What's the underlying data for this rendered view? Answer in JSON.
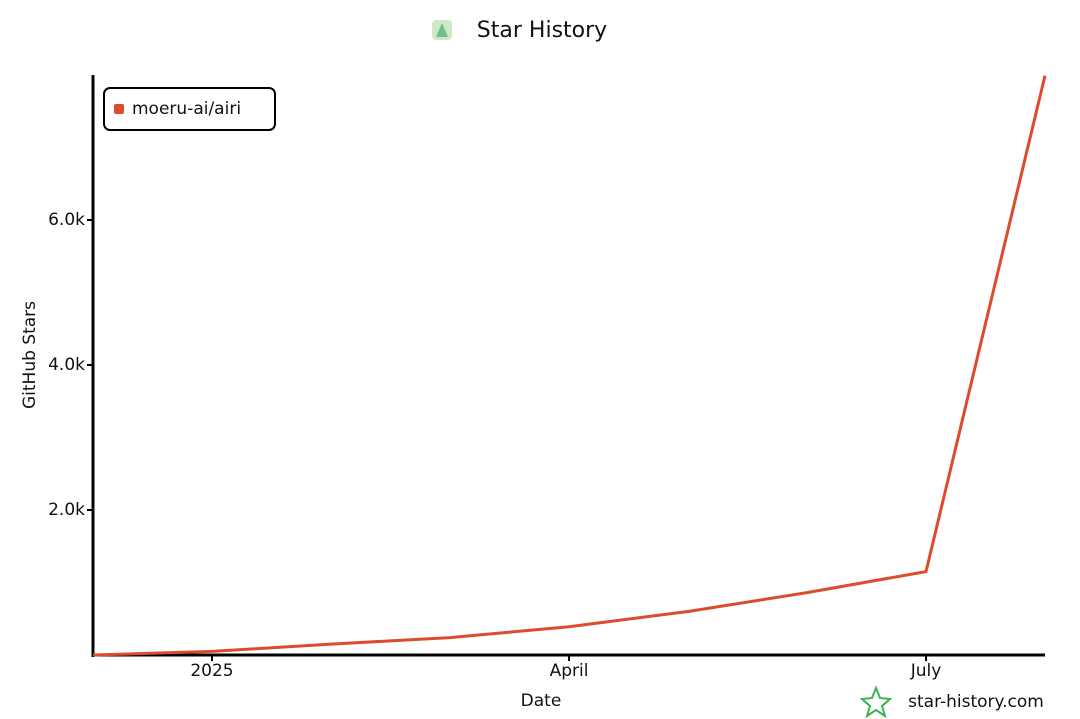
{
  "chart_data": {
    "type": "line",
    "title": "Star History",
    "x_label": "Date",
    "y_label": "GitHub Stars",
    "watermark": "star-history.com",
    "x": [
      "2024-12",
      "2025-01",
      "2025-02",
      "2025-03",
      "2025-04",
      "2025-05",
      "2025-06",
      "2025-07",
      "2025-08"
    ],
    "series": [
      {
        "name": "moeru-ai/airi",
        "color": "#dd4b2c",
        "values": [
          0,
          50,
          150,
          240,
          390,
          600,
          860,
          1150,
          7990
        ]
      }
    ],
    "xlim": [
      "2024-12",
      "2025-08"
    ],
    "xticks": [
      {
        "value": "2025-01",
        "label": "2025"
      },
      {
        "value": "2025-04",
        "label": "April"
      },
      {
        "value": "2025-07",
        "label": "July"
      }
    ],
    "ylim": [
      0,
      8000
    ],
    "yticks": [
      {
        "value": 2000,
        "label": "2.0k"
      },
      {
        "value": 4000,
        "label": "4.0k"
      },
      {
        "value": 6000,
        "label": "6.0k"
      }
    ],
    "legend": "top-left"
  }
}
